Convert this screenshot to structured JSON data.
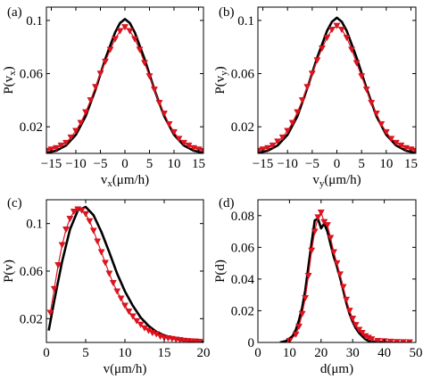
{
  "colors": {
    "data": "#e0141e",
    "model": "#000000",
    "axes": "#000000"
  },
  "chart_data": [
    {
      "type": "line",
      "panel_label": "(a)",
      "xlabel": "v",
      "xlabel_sub": "x",
      "xlabel_unit": "(μm/h)",
      "ylabel": "P(v",
      "ylabel_sub": "x",
      "ylabel_end": ")",
      "xlim": [
        -16,
        16
      ],
      "ylim": [
        0,
        0.11
      ],
      "xticks": [
        -15,
        -10,
        -5,
        0,
        5,
        10,
        15
      ],
      "xtick_labels": [
        "−15",
        "−10",
        "−5",
        "0",
        "5",
        "10",
        "15"
      ],
      "yticks": [
        0.02,
        0.06,
        0.1
      ],
      "ytick_labels": [
        "0.02",
        "0.06",
        "0.1"
      ],
      "series": [
        {
          "style": "line",
          "color": "#000000",
          "x": [
            -16,
            -14,
            -12,
            -10,
            -8,
            -6,
            -4,
            -2,
            -1,
            0,
            1,
            2,
            4,
            6,
            8,
            10,
            12,
            14,
            16
          ],
          "y": [
            0.0005,
            0.002,
            0.006,
            0.014,
            0.028,
            0.048,
            0.071,
            0.091,
            0.098,
            0.101,
            0.098,
            0.091,
            0.071,
            0.048,
            0.028,
            0.014,
            0.006,
            0.002,
            0.0005
          ]
        },
        {
          "style": "markers",
          "color": "#e0141e",
          "marker": "triangle-down",
          "x": [
            -16,
            -15,
            -14,
            -13,
            -12,
            -11,
            -10,
            -9,
            -8,
            -7,
            -6,
            -5,
            -4,
            -3,
            -2,
            -1,
            0,
            1,
            2,
            3,
            4,
            5,
            6,
            7,
            8,
            9,
            10,
            11,
            12,
            13,
            14,
            15,
            16
          ],
          "y": [
            0.002,
            0.003,
            0.004,
            0.006,
            0.008,
            0.012,
            0.017,
            0.023,
            0.031,
            0.04,
            0.05,
            0.06,
            0.069,
            0.078,
            0.086,
            0.092,
            0.095,
            0.092,
            0.086,
            0.078,
            0.068,
            0.058,
            0.048,
            0.038,
            0.03,
            0.022,
            0.016,
            0.011,
            0.008,
            0.006,
            0.004,
            0.003,
            0.002
          ]
        }
      ]
    },
    {
      "type": "line",
      "panel_label": "(b)",
      "xlabel": "v",
      "xlabel_sub": "y",
      "xlabel_unit": "(μm/h)",
      "ylabel": "P(v",
      "ylabel_sub": "y",
      "ylabel_end": ")",
      "xlim": [
        -16,
        16
      ],
      "ylim": [
        0,
        0.11
      ],
      "xticks": [
        -15,
        -10,
        -5,
        0,
        5,
        10,
        15
      ],
      "xtick_labels": [
        "−15",
        "−10",
        "−5",
        "0",
        "5",
        "10",
        "15"
      ],
      "yticks": [
        0.02,
        0.06,
        0.1
      ],
      "ytick_labels": [
        "0.02",
        "0.06",
        "0.1"
      ],
      "series": [
        {
          "style": "line",
          "color": "#000000",
          "x": [
            -16,
            -14,
            -12,
            -10,
            -8,
            -6,
            -4,
            -2,
            -1,
            0,
            1,
            2,
            4,
            6,
            8,
            10,
            12,
            14,
            16
          ],
          "y": [
            0.0005,
            0.002,
            0.006,
            0.014,
            0.028,
            0.049,
            0.072,
            0.092,
            0.099,
            0.102,
            0.099,
            0.092,
            0.072,
            0.049,
            0.028,
            0.014,
            0.006,
            0.002,
            0.0005
          ]
        },
        {
          "style": "markers",
          "color": "#e0141e",
          "marker": "triangle-down",
          "x": [
            -16,
            -15,
            -14,
            -13,
            -12,
            -11,
            -10,
            -9,
            -8,
            -7,
            -6,
            -5,
            -4,
            -3,
            -2,
            -1,
            0,
            1,
            2,
            3,
            4,
            5,
            6,
            7,
            8,
            9,
            10,
            11,
            12,
            13,
            14,
            15,
            16
          ],
          "y": [
            0.002,
            0.003,
            0.004,
            0.006,
            0.009,
            0.012,
            0.017,
            0.023,
            0.031,
            0.04,
            0.05,
            0.06,
            0.07,
            0.079,
            0.087,
            0.093,
            0.096,
            0.093,
            0.087,
            0.078,
            0.068,
            0.058,
            0.048,
            0.038,
            0.03,
            0.022,
            0.016,
            0.011,
            0.008,
            0.006,
            0.004,
            0.003,
            0.002
          ]
        }
      ]
    },
    {
      "type": "line",
      "panel_label": "(c)",
      "xlabel": "v(μm/h)",
      "ylabel": "P(v)",
      "xlim": [
        0,
        20
      ],
      "ylim": [
        0,
        0.12
      ],
      "xticks": [
        0,
        5,
        10,
        15,
        20
      ],
      "xtick_labels": [
        "0",
        "5",
        "10",
        "15",
        "20"
      ],
      "yticks": [
        0.02,
        0.06,
        0.1
      ],
      "ytick_labels": [
        "0.02",
        "0.06",
        "0.1"
      ],
      "series": [
        {
          "style": "line",
          "color": "#000000",
          "x": [
            0.3,
            1,
            2,
            3,
            4,
            5,
            6,
            7,
            8,
            9,
            10,
            11,
            12,
            13,
            14,
            15,
            16,
            17,
            18,
            19,
            20
          ],
          "y": [
            0.01,
            0.035,
            0.068,
            0.095,
            0.111,
            0.114,
            0.107,
            0.093,
            0.076,
            0.058,
            0.043,
            0.031,
            0.021,
            0.014,
            0.009,
            0.006,
            0.004,
            0.002,
            0.0015,
            0.001,
            0.0005
          ]
        },
        {
          "style": "markers",
          "color": "#e0141e",
          "marker": "triangle-down",
          "x": [
            0.5,
            1,
            1.5,
            2,
            2.5,
            3,
            3.5,
            4,
            4.5,
            5,
            5.5,
            6,
            6.5,
            7,
            7.5,
            8,
            8.5,
            9,
            9.5,
            10,
            10.5,
            11,
            11.5,
            12,
            12.5,
            13,
            13.5,
            14,
            14.5,
            15,
            15.5,
            16,
            16.5,
            17,
            17.5,
            18,
            18.5,
            19,
            19.5
          ],
          "y": [
            0.025,
            0.045,
            0.065,
            0.082,
            0.095,
            0.104,
            0.11,
            0.112,
            0.111,
            0.108,
            0.102,
            0.094,
            0.085,
            0.076,
            0.067,
            0.058,
            0.05,
            0.043,
            0.037,
            0.031,
            0.026,
            0.022,
            0.018,
            0.015,
            0.012,
            0.01,
            0.008,
            0.007,
            0.005,
            0.004,
            0.0035,
            0.003,
            0.0025,
            0.002,
            0.0015,
            0.0012,
            0.001,
            0.0008,
            0.0006
          ]
        }
      ]
    },
    {
      "type": "line",
      "panel_label": "(d)",
      "xlabel": "d(μm)",
      "ylabel": "P(d)",
      "xlim": [
        0,
        50
      ],
      "ylim": [
        0,
        0.09
      ],
      "xticks": [
        0,
        10,
        20,
        30,
        40,
        50
      ],
      "xtick_labels": [
        "0",
        "10",
        "20",
        "30",
        "40",
        "50"
      ],
      "yticks": [
        0,
        0.02,
        0.04,
        0.06,
        0.08
      ],
      "ytick_labels": [
        "0",
        "0.02",
        "0.04",
        "0.06",
        "0.08"
      ],
      "series": [
        {
          "style": "line",
          "color": "#000000",
          "x": [
            7,
            9,
            11,
            12,
            13,
            14,
            15,
            16,
            17,
            18,
            19,
            20,
            21,
            22,
            23,
            24,
            25,
            26,
            27,
            28,
            29,
            30,
            31,
            32,
            33,
            34,
            35,
            36,
            37,
            38,
            40,
            42
          ],
          "y": [
            0,
            0.001,
            0.004,
            0.008,
            0.014,
            0.022,
            0.033,
            0.048,
            0.063,
            0.077,
            0.078,
            0.072,
            0.075,
            0.07,
            0.062,
            0.054,
            0.048,
            0.041,
            0.033,
            0.025,
            0.018,
            0.013,
            0.009,
            0.006,
            0.004,
            0.002,
            0.001,
            0.0005,
            0.0002,
            0,
            0,
            0
          ]
        },
        {
          "style": "markers",
          "color": "#e0141e",
          "marker": "triangle-down",
          "x": [
            10,
            12,
            13,
            14,
            15,
            16,
            17,
            18,
            19,
            20,
            21,
            22,
            23,
            24,
            25,
            26,
            27,
            28,
            29,
            30,
            31,
            32,
            33,
            34,
            35,
            36,
            38,
            40,
            42,
            44,
            46,
            48
          ],
          "y": [
            0.001,
            0.005,
            0.01,
            0.018,
            0.028,
            0.042,
            0.058,
            0.07,
            0.079,
            0.082,
            0.076,
            0.074,
            0.066,
            0.057,
            0.05,
            0.043,
            0.035,
            0.027,
            0.02,
            0.015,
            0.011,
            0.008,
            0.006,
            0.004,
            0.003,
            0.002,
            0.001,
            0.0008,
            0.0005,
            0.0003,
            0.0002,
            0.0001
          ]
        }
      ]
    }
  ]
}
